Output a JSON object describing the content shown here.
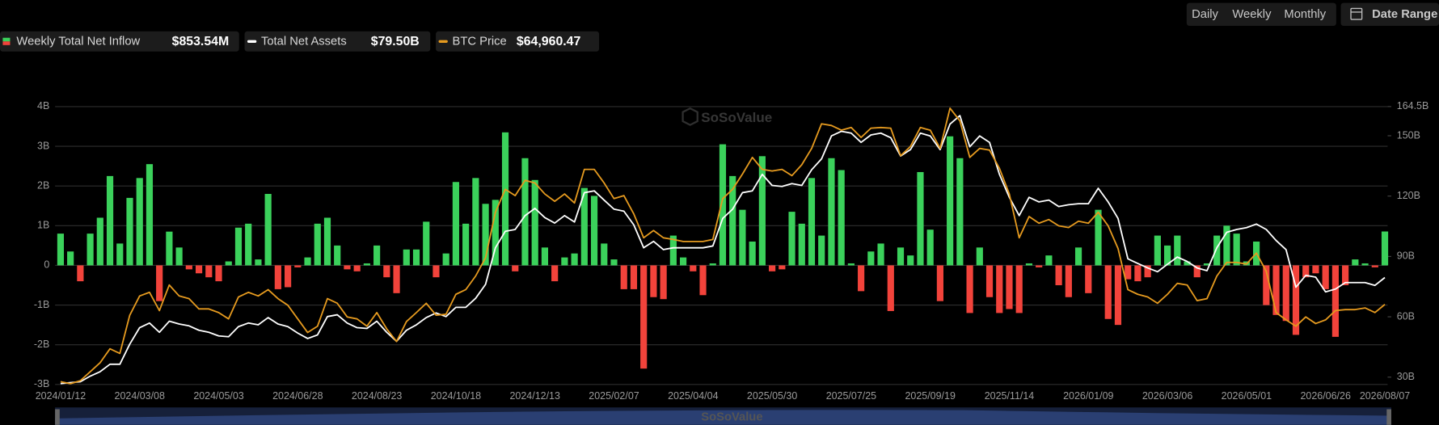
{
  "chart_data": {
    "type": "combo",
    "watermark": "SoSoValue",
    "controls": {
      "periods": [
        "Daily",
        "Weekly",
        "Monthly"
      ],
      "active_period": 1,
      "date_range": "Date Range"
    },
    "categories": [
      "2024/01/12",
      null,
      null,
      null,
      null,
      null,
      null,
      null,
      "2024/03/08",
      null,
      null,
      null,
      null,
      null,
      null,
      null,
      "2024/05/03",
      null,
      null,
      null,
      null,
      null,
      null,
      null,
      "2024/06/28",
      null,
      null,
      null,
      null,
      null,
      null,
      null,
      "2024/08/23",
      null,
      null,
      null,
      null,
      null,
      null,
      null,
      "2024/10/18",
      null,
      null,
      null,
      null,
      null,
      null,
      null,
      "2024/12/13",
      null,
      null,
      null,
      null,
      null,
      null,
      null,
      "2025/02/07",
      null,
      null,
      null,
      null,
      null,
      null,
      null,
      "2025/04/04",
      null,
      null,
      null,
      null,
      null,
      null,
      null,
      "2025/05/30",
      null,
      null,
      null,
      null,
      null,
      null,
      null,
      "2025/07/25",
      null,
      null,
      null,
      null,
      null,
      null,
      null,
      "2025/09/19",
      null,
      null,
      null,
      null,
      null,
      null,
      null,
      "2025/11/14",
      null,
      null,
      null,
      null,
      null,
      null,
      null,
      "2026/01/09",
      null,
      null,
      null,
      null,
      null,
      null,
      null,
      "2026/03/06",
      null,
      null,
      null,
      null,
      null,
      null,
      null,
      "2026/05/01",
      null,
      null,
      null,
      null,
      null,
      null,
      null,
      "2026/06/26",
      null,
      null,
      null,
      null,
      null,
      "2026/08/07"
    ],
    "ylim": [
      -3,
      4
    ],
    "yticks": [
      {
        "value": 4,
        "label": "4B"
      },
      {
        "value": 3,
        "label": "3B"
      },
      {
        "value": 2,
        "label": "2B"
      },
      {
        "value": 1,
        "label": "1B"
      },
      0,
      {
        "value": -1,
        "label": "-1B"
      },
      {
        "value": -2,
        "label": "-2B"
      },
      {
        "value": -3,
        "label": "-3B"
      }
    ],
    "y2lim": [
      26.35,
      164.5
    ],
    "y2ticks": [
      {
        "value": 30,
        "label": "30B"
      },
      {
        "value": 60,
        "label": "60B"
      },
      {
        "value": 90,
        "label": "90B"
      },
      {
        "value": 120,
        "label": "120B"
      },
      {
        "value": 150,
        "label": "150B"
      },
      {
        "value": 164.5,
        "label": "164.5B"
      }
    ],
    "y3lim": [
      40862,
      124500
    ],
    "grid": true,
    "series": [
      {
        "name": "Weekly Total Net Inflow",
        "type": "bar",
        "color": "#3bd15b",
        "negative_color": "#f2433b",
        "legend_value": "$853.54M",
        "values": [
          0.8,
          0.35,
          -0.4,
          0.8,
          1.2,
          2.25,
          0.55,
          1.7,
          2.2,
          2.55,
          -0.9,
          0.85,
          0.45,
          -0.1,
          -0.2,
          -0.3,
          -0.4,
          0.1,
          0.95,
          1.05,
          0.15,
          1.8,
          -0.6,
          -0.55,
          -0.05,
          0.2,
          1.05,
          1.2,
          0.5,
          -0.1,
          -0.15,
          0.05,
          0.5,
          -0.3,
          -0.7,
          0.4,
          0.4,
          1.1,
          -0.3,
          0.3,
          2.1,
          1.05,
          2.2,
          1.55,
          1.65,
          3.35,
          -0.15,
          2.7,
          2.15,
          0.45,
          -0.4,
          0.2,
          0.3,
          1.95,
          1.75,
          0.55,
          0.15,
          -0.6,
          -0.6,
          -2.6,
          -0.8,
          -0.85,
          0.75,
          0.2,
          -0.15,
          -0.75,
          0.05,
          3.05,
          2.25,
          1.4,
          0.6,
          2.75,
          -0.15,
          -0.1,
          1.35,
          1.05,
          2.2,
          0.75,
          2.7,
          2.4,
          0.05,
          -0.65,
          0.35,
          0.55,
          -1.15,
          0.45,
          0.25,
          2.35,
          0.9,
          -0.9,
          3.25,
          2.7,
          -1.2,
          0.45,
          -0.8,
          -1.2,
          -1.1,
          -1.2,
          0.05,
          -0.05,
          0.25,
          -0.5,
          -0.8,
          0.45,
          -0.7,
          1.4,
          -1.35,
          -1.5,
          -0.35,
          -0.4,
          -0.3,
          0.75,
          0.5,
          0.75,
          0.1,
          -0.3,
          0.05,
          0.75,
          1.0,
          0.8,
          0.1,
          0.6,
          -1.0,
          -1.25,
          -1.4,
          -1.75,
          -0.3,
          -0.2,
          -0.6,
          -1.8,
          -0.5,
          0.15,
          0.05,
          -0.05,
          0.85354
        ]
      },
      {
        "name": "Total Net Assets",
        "type": "line",
        "axis": "y2",
        "color": "#ffffff",
        "legend_value": "$79.50B",
        "values": [
          26.8,
          27.3,
          27.7,
          30.5,
          32.7,
          36.4,
          36.4,
          46.4,
          54.6,
          56.9,
          52.3,
          57.8,
          56.4,
          55.5,
          53.3,
          52.3,
          50.5,
          50.1,
          55.1,
          56.9,
          56.0,
          59.6,
          56.4,
          55.1,
          51.9,
          49.2,
          51.0,
          60.1,
          61.0,
          56.9,
          54.6,
          54.2,
          57.8,
          52.3,
          47.8,
          53.3,
          56.0,
          59.6,
          61.9,
          60.1,
          64.7,
          64.7,
          69.2,
          76.1,
          94.3,
          102.5,
          103.4,
          110.3,
          113.9,
          109.3,
          106.6,
          110.3,
          107.1,
          121.7,
          122.6,
          118.0,
          113.5,
          112.5,
          105.7,
          94.3,
          97.5,
          93.4,
          94.3,
          94.3,
          94.3,
          94.3,
          95.2,
          108.9,
          113.5,
          121.7,
          122.6,
          130.8,
          125.3,
          124.8,
          126.2,
          125.3,
          133.1,
          138.5,
          149.9,
          152.2,
          151.3,
          146.7,
          150.4,
          151.3,
          149.0,
          139.9,
          143.1,
          151.3,
          149.9,
          143.1,
          155.8,
          160.0,
          144.5,
          149.9,
          146.7,
          130.8,
          119.4,
          110.3,
          119.4,
          117.1,
          118.0,
          114.8,
          115.7,
          116.2,
          116.2,
          123.9,
          117.1,
          108.9,
          88.8,
          86.5,
          84.3,
          82.4,
          86.1,
          89.7,
          87.5,
          84.3,
          82.9,
          94.3,
          102.0,
          103.4,
          104.3,
          106.1,
          103.4,
          97.9,
          93.4,
          74.7,
          80.6,
          79.7,
          72.4,
          73.8,
          77.0,
          77.0,
          77.0,
          75.6,
          79.5
        ]
      },
      {
        "name": "BTC Price",
        "type": "line",
        "axis": "y3",
        "color": "#e59a1f",
        "legend_value": "$64,960.47",
        "values": [
          41700,
          41100,
          42000,
          44700,
          47400,
          51600,
          50200,
          61700,
          67500,
          68600,
          63100,
          70800,
          67500,
          66700,
          63600,
          63600,
          62500,
          60600,
          67200,
          68600,
          67500,
          69400,
          66700,
          64700,
          60600,
          56500,
          58400,
          66700,
          65300,
          61200,
          60600,
          58400,
          62500,
          57600,
          53800,
          59800,
          62500,
          65300,
          61700,
          62000,
          68000,
          69400,
          73500,
          79000,
          92700,
          99600,
          97700,
          102300,
          101500,
          98200,
          96000,
          98200,
          95500,
          105600,
          105600,
          101500,
          96800,
          97700,
          92200,
          85000,
          87200,
          85000,
          84500,
          83900,
          83900,
          83900,
          84500,
          96800,
          99600,
          104200,
          109200,
          105600,
          105100,
          105600,
          103700,
          107000,
          111900,
          119300,
          118800,
          117400,
          118200,
          115200,
          118000,
          118200,
          118000,
          109700,
          112500,
          118200,
          117400,
          111900,
          124000,
          120200,
          109200,
          111900,
          111400,
          105900,
          98200,
          85000,
          91400,
          89400,
          90500,
          88600,
          88100,
          90000,
          89400,
          92700,
          88600,
          81800,
          69400,
          68000,
          67200,
          65300,
          68000,
          71300,
          70800,
          66100,
          66700,
          73500,
          77600,
          77600,
          77100,
          80400,
          74900,
          62500,
          60300,
          58400,
          61200,
          59200,
          60300,
          63100,
          63400,
          63400,
          63900,
          62500,
          64960.47
        ]
      }
    ]
  }
}
